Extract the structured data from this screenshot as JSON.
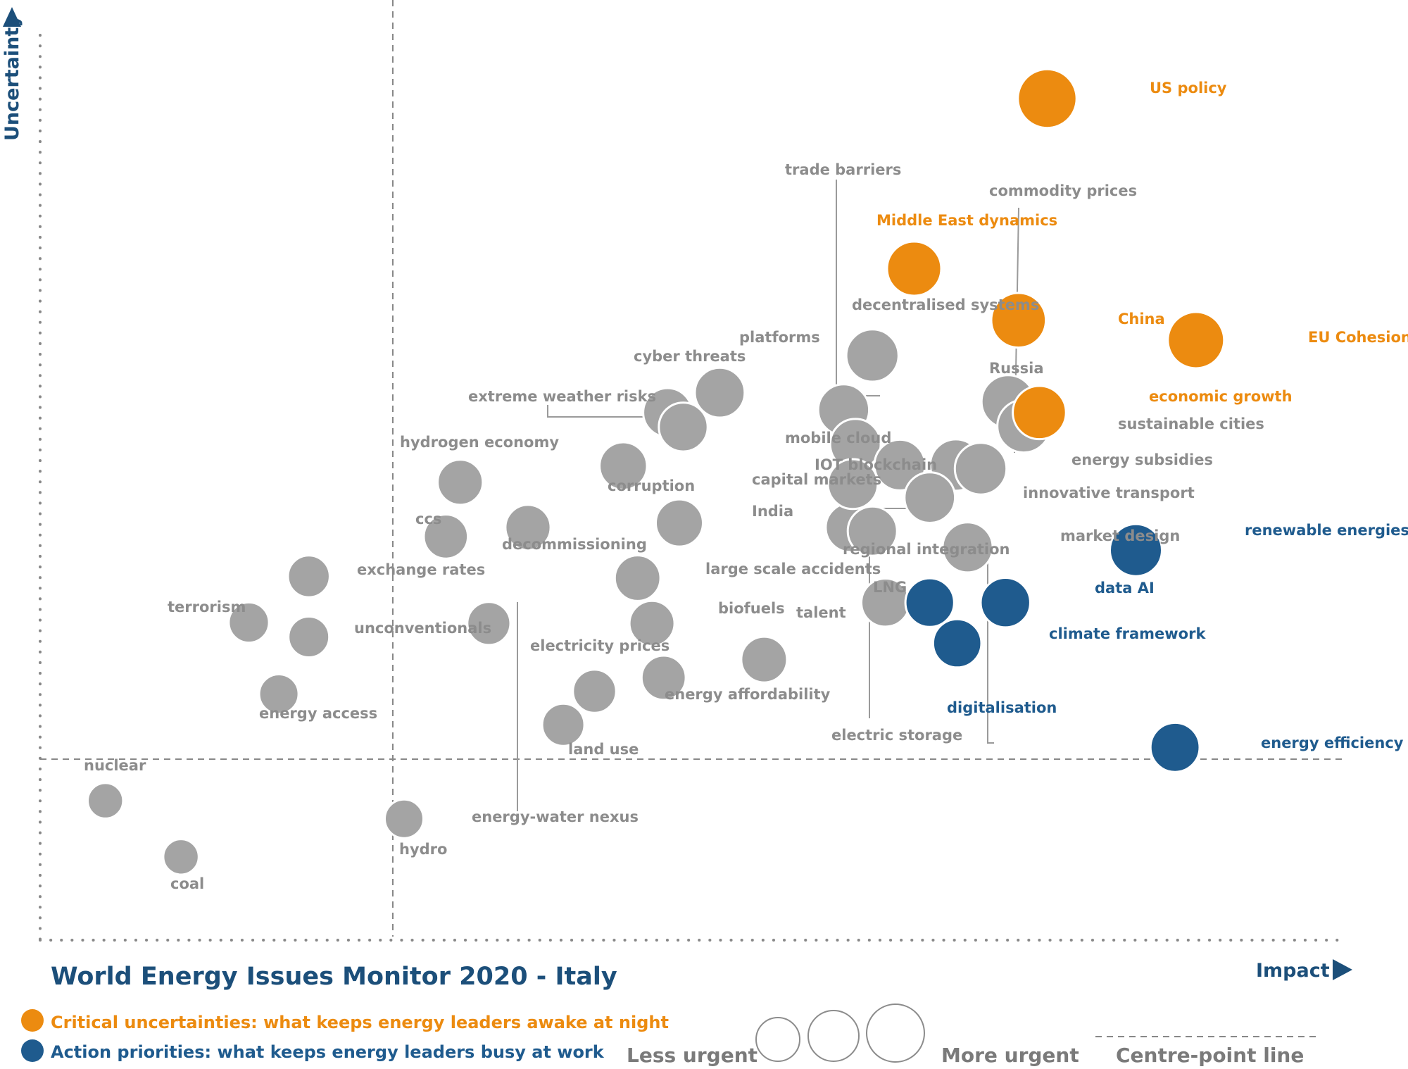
{
  "title": "World Energy Issues Monitor 2020 - Italy",
  "colors": {
    "uncertainty": "#ec8b10",
    "priority": "#1f5b8e",
    "other": "#a4a4a4",
    "other_text": "#8c8c8c",
    "navy": "#1c4f7a"
  },
  "legend": {
    "critical": "Critical uncertainties: what keeps energy leaders awake at night",
    "action": "Action priorities: what keeps energy leaders busy at work",
    "less_urgent": "Less urgent",
    "more_urgent": "More urgent",
    "centre_line": "Centre-point  line"
  },
  "chart_data": {
    "type": "scatter",
    "title": "World Energy Issues Monitor 2020 - Italy",
    "xlabel": "Impact",
    "ylabel": "Uncertainty",
    "xlim": [
      0,
      100
    ],
    "ylim": [
      0,
      100
    ],
    "centre_point": {
      "x": 25.2,
      "y": 19.3
    },
    "points": [
      {
        "label": "US policy",
        "x": 77.2,
        "y": 93.0,
        "category": "uncertainty"
      },
      {
        "label": "EU Cohesion",
        "x": 88.6,
        "y": 66.3,
        "category": "uncertainty"
      },
      {
        "label": "China",
        "x": 75.0,
        "y": 68.5,
        "category": "uncertainty"
      },
      {
        "label": "Middle East dynamics",
        "x": 67.0,
        "y": 74.2,
        "category": "uncertainty"
      },
      {
        "label": "economic growth",
        "x": 76.6,
        "y": 58.3,
        "category": "uncertainty"
      },
      {
        "label": "renewable energies",
        "x": 84.0,
        "y": 43.1,
        "category": "priority"
      },
      {
        "label": "energy efficiency",
        "x": 87.0,
        "y": 21.3,
        "category": "priority"
      },
      {
        "label": "data AI",
        "x": 74.0,
        "y": 37.3,
        "category": "priority"
      },
      {
        "label": "digitalisation",
        "x": 68.2,
        "y": 37.3,
        "category": "priority"
      },
      {
        "label": "climate framework",
        "x": 70.3,
        "y": 32.8,
        "category": "priority"
      },
      {
        "label": "decentralised systems",
        "x": 63.8,
        "y": 64.6,
        "category": "other"
      },
      {
        "label": "platforms",
        "x": 52.1,
        "y": 60.5,
        "category": "other"
      },
      {
        "label": "cyber threats",
        "x": 48.1,
        "y": 58.3,
        "category": "other"
      },
      {
        "label": "extreme weather risks",
        "x": 49.3,
        "y": 56.7,
        "category": "other"
      },
      {
        "label": "trade barriers",
        "x": 61.6,
        "y": 58.6,
        "category": "other"
      },
      {
        "label": "Russia",
        "x": 74.2,
        "y": 59.5,
        "category": "other"
      },
      {
        "label": "sustainable cities",
        "x": 75.4,
        "y": 56.8,
        "category": "other"
      },
      {
        "label": "mobile cloud",
        "x": 62.5,
        "y": 54.8,
        "category": "other"
      },
      {
        "label": "commodity prices",
        "x": 70.2,
        "y": 52.5,
        "category": "other"
      },
      {
        "label": "energy subsidies",
        "x": 72.1,
        "y": 52.1,
        "category": "other"
      },
      {
        "label": "IOT blockchain",
        "x": 65.9,
        "y": 52.5,
        "category": "other"
      },
      {
        "label": "corruption",
        "x": 44.7,
        "y": 52.4,
        "category": "other"
      },
      {
        "label": "innovative transport",
        "x": 68.2,
        "y": 48.9,
        "category": "other"
      },
      {
        "label": "hydrogen economy",
        "x": 32.2,
        "y": 50.6,
        "category": "other"
      },
      {
        "label": "capital markets",
        "x": 62.1,
        "y": 45.6,
        "category": "other"
      },
      {
        "label": "regional integration",
        "x": 63.8,
        "y": 45.2,
        "category": "other"
      },
      {
        "label": "India",
        "x": 49.0,
        "y": 46.1,
        "category": "other"
      },
      {
        "label": "decommissioning",
        "x": 37.4,
        "y": 45.6,
        "category": "other"
      },
      {
        "label": "ccs",
        "x": 31.1,
        "y": 44.6,
        "category": "other"
      },
      {
        "label": "market design",
        "x": 71.1,
        "y": 43.4,
        "category": "other"
      },
      {
        "label": "exchange rates",
        "x": 20.6,
        "y": 40.2,
        "category": "other"
      },
      {
        "label": "large scale accidents",
        "x": 45.8,
        "y": 40.0,
        "category": "other"
      },
      {
        "label": "LNG",
        "x": 64.8,
        "y": 37.3,
        "category": "other"
      },
      {
        "label": "terrorism",
        "x": 16.0,
        "y": 35.1,
        "category": "other"
      },
      {
        "label": "unconventionals",
        "x": 20.6,
        "y": 33.5,
        "category": "other"
      },
      {
        "label": "energy-water nexus",
        "x": 34.4,
        "y": 35.0,
        "category": "other"
      },
      {
        "label": "biofuels",
        "x": 46.9,
        "y": 35.0,
        "category": "other"
      },
      {
        "label": "talent",
        "x": 55.5,
        "y": 31.0,
        "category": "other"
      },
      {
        "label": "electric storage",
        "x": 62.3,
        "y": 50.4,
        "category": "other"
      },
      {
        "label": "electricity prices",
        "x": 42.5,
        "y": 27.5,
        "category": "other"
      },
      {
        "label": "energy affordability",
        "x": 47.8,
        "y": 29.0,
        "category": "other"
      },
      {
        "label": "energy access",
        "x": 18.3,
        "y": 27.2,
        "category": "other"
      },
      {
        "label": "land use",
        "x": 40.1,
        "y": 23.8,
        "category": "other"
      },
      {
        "label": "nuclear",
        "x": 5.0,
        "y": 15.4,
        "category": "other"
      },
      {
        "label": "hydro",
        "x": 27.9,
        "y": 13.4,
        "category": "other"
      },
      {
        "label": "coal",
        "x": 10.8,
        "y": 9.2,
        "category": "other"
      }
    ]
  }
}
